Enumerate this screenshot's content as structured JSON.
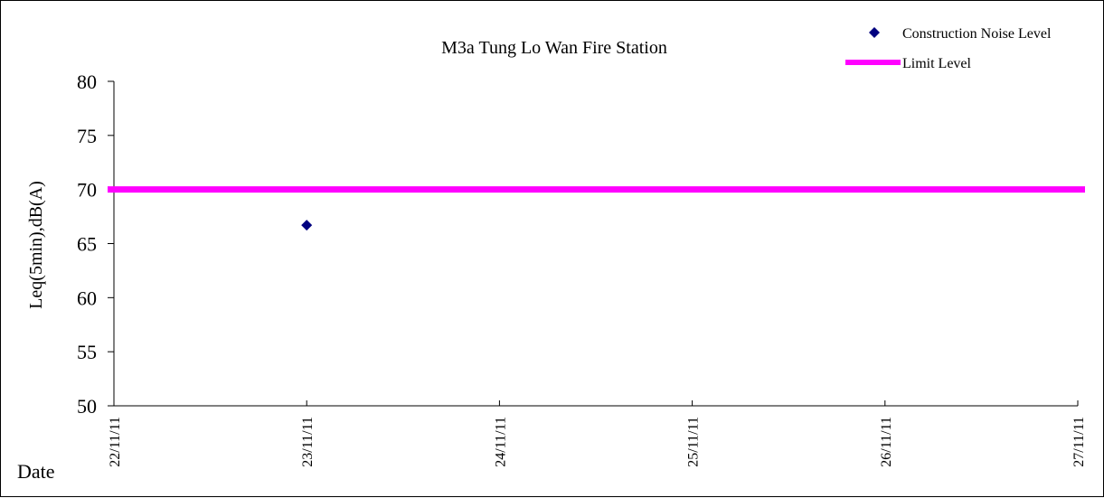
{
  "chart_data": {
    "type": "scatter",
    "title": "M3a Tung Lo Wan Fire Station",
    "ylabel": "Leq(5min),dB(A)",
    "xlabel": "Date",
    "ylim": [
      50,
      80
    ],
    "yticks": [
      80,
      75,
      70,
      65,
      60,
      55,
      50
    ],
    "x_categories": [
      "22/11/11",
      "23/11/11",
      "24/11/11",
      "25/11/11",
      "26/11/11",
      "27/11/11"
    ],
    "series": [
      {
        "name": "Construction Noise Level",
        "marker": "diamond",
        "color": "#000080",
        "points": [
          {
            "x": "23/11/11",
            "y": 66.7
          }
        ]
      },
      {
        "name": "Limit Level",
        "style": "line",
        "color": "#ff00ff",
        "value": 70
      }
    ],
    "legend_position": "top-right",
    "grid": false
  }
}
